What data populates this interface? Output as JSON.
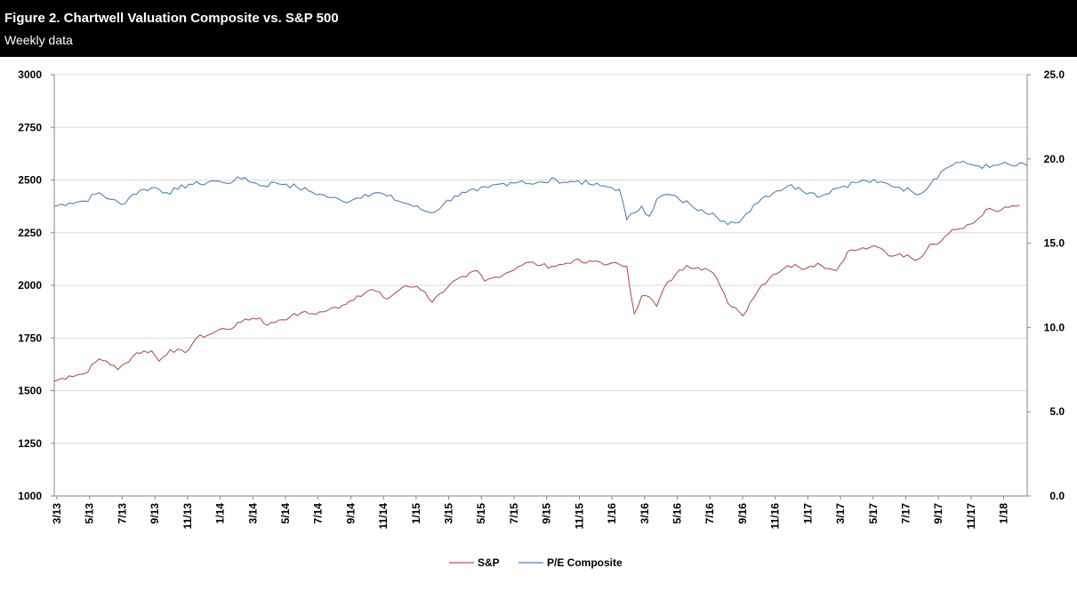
{
  "header": {
    "title": "Figure 2. Chartwell Valuation Composite vs. S&P 500",
    "subtitle": "Weekly data"
  },
  "chart_data": {
    "type": "line",
    "title": "Figure 2. Chartwell Valuation Composite vs. S&P 500",
    "subtitle": "Weekly data",
    "x_tick_labels": [
      "3/13",
      "5/13",
      "7/13",
      "9/13",
      "11/13",
      "1/14",
      "3/14",
      "5/14",
      "7/14",
      "9/14",
      "11/14",
      "1/15",
      "3/15",
      "5/15",
      "7/15",
      "9/15",
      "11/15",
      "1/16",
      "3/16",
      "5/16",
      "7/16",
      "9/16",
      "11/16",
      "1/17",
      "3/17",
      "5/17",
      "7/17",
      "9/17",
      "11/17",
      "1/18"
    ],
    "x_range": [
      0,
      260
    ],
    "left_axis": {
      "ylim": [
        1000,
        3000
      ],
      "ticks": [
        "3000",
        "2750",
        "2500",
        "2250",
        "2000",
        "1750",
        "1500",
        "1250",
        "1000"
      ]
    },
    "right_axis": {
      "ylim": [
        0,
        25
      ],
      "ticks": [
        "25.0",
        "20.0",
        "15.0",
        "10.0",
        "5.0",
        "0.0"
      ]
    },
    "grid": true,
    "legend_position": "bottom",
    "series": [
      {
        "name": "S&P",
        "axis": "left",
        "color": "#c0504d",
        "points": [
          [
            0,
            1545
          ],
          [
            4,
            1570
          ],
          [
            8,
            1580
          ],
          [
            12,
            1650
          ],
          [
            14,
            1640
          ],
          [
            17,
            1600
          ],
          [
            19,
            1630
          ],
          [
            22,
            1680
          ],
          [
            26,
            1690
          ],
          [
            28,
            1640
          ],
          [
            31,
            1695
          ],
          [
            35,
            1680
          ],
          [
            38,
            1750
          ],
          [
            42,
            1770
          ],
          [
            45,
            1795
          ],
          [
            48,
            1800
          ],
          [
            51,
            1840
          ],
          [
            55,
            1845
          ],
          [
            57,
            1810
          ],
          [
            60,
            1835
          ],
          [
            63,
            1850
          ],
          [
            66,
            1870
          ],
          [
            69,
            1865
          ],
          [
            73,
            1880
          ],
          [
            77,
            1905
          ],
          [
            81,
            1950
          ],
          [
            85,
            1980
          ],
          [
            89,
            1935
          ],
          [
            93,
            1990
          ],
          [
            97,
            1995
          ],
          [
            99,
            1970
          ],
          [
            101,
            1920
          ],
          [
            103,
            1960
          ],
          [
            106,
            2010
          ],
          [
            110,
            2040
          ],
          [
            113,
            2070
          ],
          [
            115,
            2020
          ],
          [
            118,
            2040
          ],
          [
            121,
            2060
          ],
          [
            124,
            2090
          ],
          [
            127,
            2110
          ],
          [
            130,
            2095
          ],
          [
            133,
            2090
          ],
          [
            136,
            2100
          ],
          [
            139,
            2120
          ],
          [
            142,
            2105
          ],
          [
            145,
            2115
          ],
          [
            148,
            2100
          ],
          [
            151,
            2100
          ],
          [
            153,
            2090
          ],
          [
            155,
            1865
          ],
          [
            157,
            1950
          ],
          [
            159,
            1945
          ],
          [
            161,
            1900
          ],
          [
            163,
            1990
          ],
          [
            166,
            2050
          ],
          [
            169,
            2095
          ],
          [
            172,
            2085
          ],
          [
            174,
            2080
          ],
          [
            176,
            2060
          ],
          [
            178,
            1995
          ],
          [
            180,
            1915
          ],
          [
            182,
            1895
          ],
          [
            184,
            1855
          ],
          [
            186,
            1920
          ],
          [
            189,
            2000
          ],
          [
            192,
            2050
          ],
          [
            195,
            2080
          ],
          [
            198,
            2100
          ],
          [
            201,
            2080
          ],
          [
            204,
            2105
          ],
          [
            207,
            2080
          ],
          [
            209,
            2070
          ],
          [
            212,
            2160
          ],
          [
            215,
            2170
          ],
          [
            218,
            2180
          ],
          [
            221,
            2175
          ],
          [
            223,
            2140
          ],
          [
            226,
            2150
          ],
          [
            229,
            2130
          ],
          [
            231,
            2125
          ],
          [
            234,
            2195
          ],
          [
            237,
            2210
          ],
          [
            240,
            2265
          ],
          [
            243,
            2270
          ],
          [
            246,
            2300
          ],
          [
            249,
            2360
          ],
          [
            252,
            2350
          ],
          [
            255,
            2370
          ],
          [
            258,
            2380
          ]
        ],
        "values_note": ""
      },
      {
        "name": "P/E Composite",
        "axis": "right",
        "color": "#4f81bd",
        "points": [
          [
            0,
            17.2
          ],
          [
            4,
            17.4
          ],
          [
            8,
            17.5
          ],
          [
            12,
            18.0
          ],
          [
            15,
            17.6
          ],
          [
            18,
            17.3
          ],
          [
            21,
            17.9
          ],
          [
            24,
            18.2
          ],
          [
            27,
            18.3
          ],
          [
            30,
            18.0
          ],
          [
            33,
            18.2
          ],
          [
            36,
            18.5
          ],
          [
            39,
            18.5
          ],
          [
            42,
            18.7
          ],
          [
            45,
            18.6
          ],
          [
            48,
            18.7
          ],
          [
            51,
            18.9
          ],
          [
            53,
            18.6
          ],
          [
            56,
            18.4
          ],
          [
            59,
            18.6
          ],
          [
            62,
            18.5
          ],
          [
            65,
            18.3
          ],
          [
            68,
            18.1
          ],
          [
            71,
            17.9
          ],
          [
            74,
            17.7
          ],
          [
            77,
            17.5
          ],
          [
            80,
            17.6
          ],
          [
            83,
            17.9
          ],
          [
            86,
            18.0
          ],
          [
            89,
            17.8
          ],
          [
            92,
            17.5
          ],
          [
            95,
            17.3
          ],
          [
            98,
            17.0
          ],
          [
            101,
            16.8
          ],
          [
            104,
            17.3
          ],
          [
            107,
            17.8
          ],
          [
            110,
            18.0
          ],
          [
            113,
            18.1
          ],
          [
            116,
            18.3
          ],
          [
            119,
            18.5
          ],
          [
            122,
            18.6
          ],
          [
            125,
            18.7
          ],
          [
            128,
            18.5
          ],
          [
            131,
            18.6
          ],
          [
            134,
            18.8
          ],
          [
            137,
            18.6
          ],
          [
            140,
            18.7
          ],
          [
            143,
            18.5
          ],
          [
            146,
            18.4
          ],
          [
            149,
            18.3
          ],
          [
            151,
            18.2
          ],
          [
            153,
            16.4
          ],
          [
            155,
            16.8
          ],
          [
            157,
            17.2
          ],
          [
            159,
            16.6
          ],
          [
            161,
            17.6
          ],
          [
            164,
            17.9
          ],
          [
            167,
            17.6
          ],
          [
            170,
            17.3
          ],
          [
            173,
            17.0
          ],
          [
            176,
            16.8
          ],
          [
            178,
            16.3
          ],
          [
            180,
            16.1
          ],
          [
            182,
            16.2
          ],
          [
            184,
            16.5
          ],
          [
            187,
            17.3
          ],
          [
            190,
            17.8
          ],
          [
            193,
            18.1
          ],
          [
            196,
            18.4
          ],
          [
            199,
            18.3
          ],
          [
            202,
            18.0
          ],
          [
            205,
            17.8
          ],
          [
            208,
            18.2
          ],
          [
            211,
            18.4
          ],
          [
            214,
            18.6
          ],
          [
            217,
            18.7
          ],
          [
            220,
            18.6
          ],
          [
            223,
            18.5
          ],
          [
            226,
            18.3
          ],
          [
            229,
            18.1
          ],
          [
            232,
            18.0
          ],
          [
            235,
            18.8
          ],
          [
            238,
            19.4
          ],
          [
            241,
            19.8
          ],
          [
            244,
            19.7
          ],
          [
            247,
            19.6
          ],
          [
            250,
            19.5
          ],
          [
            253,
            19.7
          ],
          [
            256,
            19.6
          ],
          [
            260,
            19.6
          ]
        ]
      }
    ]
  },
  "colors": {
    "sp": "#c0504d",
    "pe": "#4f81bd",
    "grid": "#d9d9d9",
    "axis": "#868686"
  }
}
